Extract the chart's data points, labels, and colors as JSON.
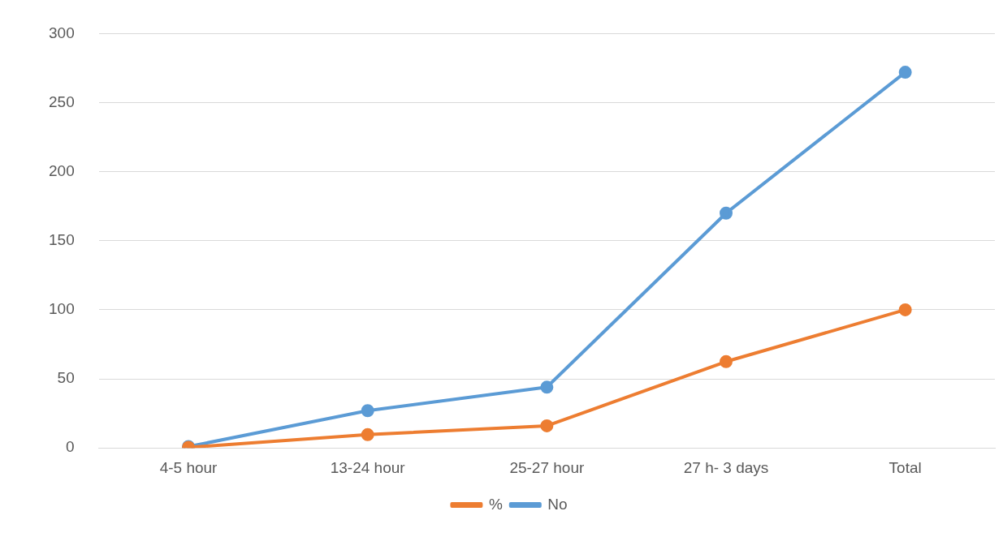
{
  "chart_data": {
    "type": "line",
    "categories": [
      "4-5 hour",
      "13-24 hour",
      "25-27 hour",
      "27 h- 3 days",
      "Total"
    ],
    "series": [
      {
        "name": "No",
        "color": "#5b9bd5",
        "values": [
          1,
          27,
          44,
          170,
          272
        ]
      },
      {
        "name": "%",
        "color": "#ed7d31",
        "values": [
          0.4,
          9.6,
          16,
          62.5,
          100
        ]
      }
    ],
    "ylim": [
      0,
      300
    ],
    "yticks": [
      0,
      50,
      100,
      150,
      200,
      250,
      300
    ],
    "grid": "y",
    "legend": "bottom",
    "marker": "circle",
    "line_style": "solid"
  }
}
